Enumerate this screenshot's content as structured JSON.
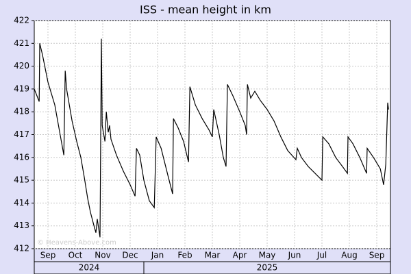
{
  "chart_data": {
    "type": "line",
    "title": "ISS - mean height in km",
    "color": "#000000",
    "grid": true,
    "watermark": "© Heavens-Above.com",
    "x": [
      0,
      0.18,
      0.2,
      0.3,
      0.5,
      0.75,
      0.93,
      1.08,
      1.13,
      1.18,
      1.38,
      1.55,
      1.7,
      1.83,
      1.95,
      2.05,
      2.18,
      2.25,
      2.3,
      2.4,
      2.45,
      2.48,
      2.58,
      2.63,
      2.7,
      2.75,
      2.8,
      3,
      3.25,
      3.5,
      3.68,
      3.73,
      3.85,
      4,
      4.2,
      4.38,
      4.45,
      4.63,
      4.88,
      5.05,
      5.08,
      5.25,
      5.45,
      5.63,
      5.68,
      5.88,
      6.13,
      6.38,
      6.5,
      6.55,
      6.75,
      6.9,
      7,
      7.05,
      7.25,
      7.5,
      7.7,
      7.75,
      7.78,
      7.9,
      8.05,
      8.25,
      8.5,
      8.75,
      9,
      9.25,
      9.55,
      9.6,
      9.75,
      10,
      10.25,
      10.5,
      10.53,
      10.75,
      11,
      11.25,
      11.43,
      11.45,
      11.63,
      11.88,
      12.13,
      12.15,
      12.38,
      12.63,
      12.75,
      12.83,
      12.9,
      12.93
    ],
    "values": [
      419,
      418.45,
      421,
      420.5,
      419.3,
      418.3,
      417.1,
      416.1,
      419.8,
      419,
      417.6,
      416.7,
      416,
      415.1,
      414.2,
      413.6,
      413,
      412.7,
      413.3,
      412.5,
      421.2,
      417.4,
      416.7,
      418,
      417.1,
      417.4,
      416.8,
      416.1,
      415.4,
      414.8,
      414.3,
      416.4,
      416.1,
      415,
      414.1,
      413.8,
      416.9,
      416.4,
      415.2,
      414.4,
      417.7,
      417.3,
      416.7,
      415.8,
      419.1,
      418.3,
      417.7,
      417.2,
      416.9,
      418.1,
      417,
      416,
      415.6,
      419.2,
      418.7,
      418,
      417.4,
      417,
      419.2,
      418.6,
      418.9,
      418.5,
      418.1,
      417.6,
      416.9,
      416.3,
      415.9,
      416.4,
      416,
      415.6,
      415.3,
      415,
      416.9,
      416.6,
      416,
      415.6,
      415.3,
      416.9,
      416.6,
      416,
      415.3,
      416.4,
      416,
      415.5,
      414.8,
      415.7,
      418.4,
      418.1
    ],
    "xlim": [
      0,
      13
    ],
    "xticks": [
      {
        "value": 0.5,
        "label": "Sep"
      },
      {
        "value": 1.5,
        "label": "Oct"
      },
      {
        "value": 2.5,
        "label": "Nov"
      },
      {
        "value": 3.5,
        "label": "Dec"
      },
      {
        "value": 4.5,
        "label": "Jan"
      },
      {
        "value": 5.5,
        "label": "Feb"
      },
      {
        "value": 6.5,
        "label": "Mar"
      },
      {
        "value": 7.5,
        "label": "Apr"
      },
      {
        "value": 8.5,
        "label": "May"
      },
      {
        "value": 9.5,
        "label": "Jun"
      },
      {
        "value": 10.5,
        "label": "Jul"
      },
      {
        "value": 11.5,
        "label": "Aug"
      },
      {
        "value": 12.5,
        "label": "Sep"
      }
    ],
    "xgroups": [
      {
        "label": "2024",
        "range": [
          0,
          4
        ]
      },
      {
        "label": "2025",
        "range": [
          4,
          13
        ]
      }
    ],
    "ylim": [
      412,
      422
    ],
    "yticks": [
      412,
      413,
      414,
      415,
      416,
      417,
      418,
      419,
      420,
      421,
      422
    ]
  }
}
